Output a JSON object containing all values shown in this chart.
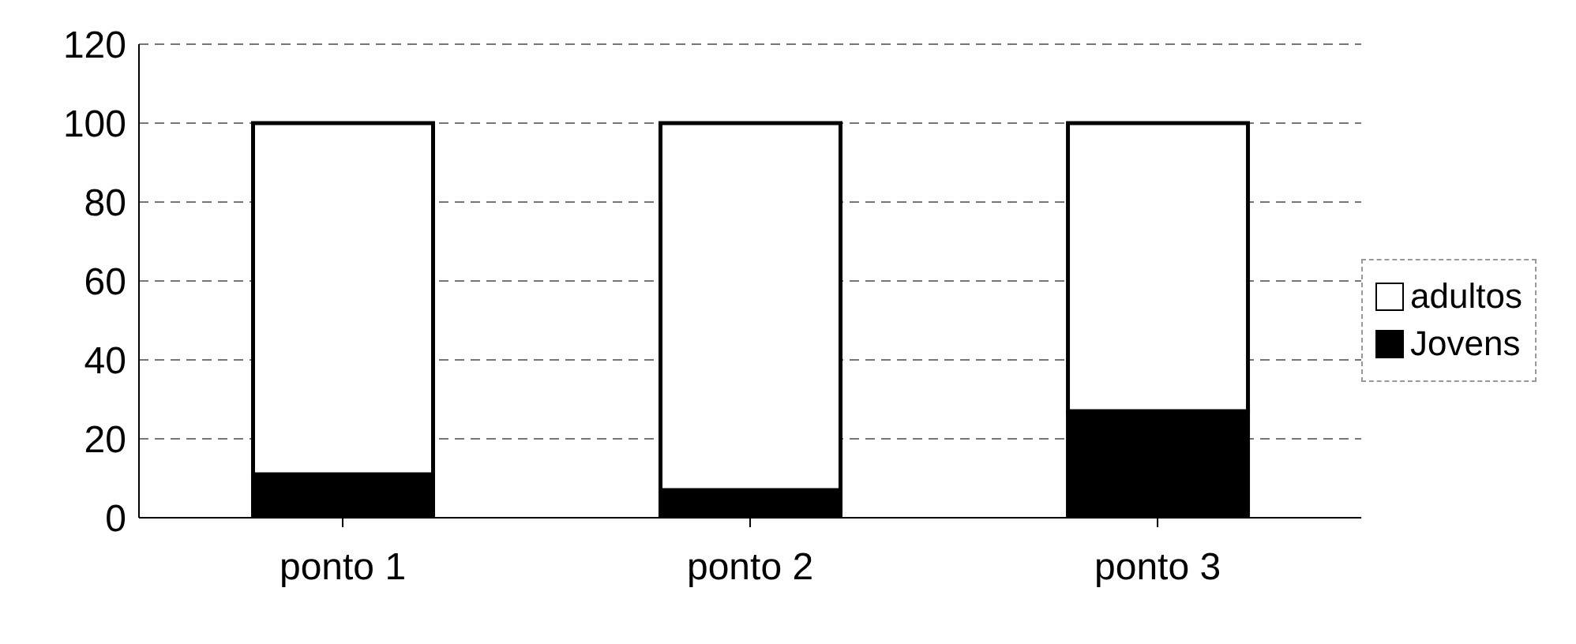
{
  "chart_data": {
    "type": "bar",
    "stacked": true,
    "categories": [
      "ponto 1",
      "ponto 2",
      "ponto 3"
    ],
    "series": [
      {
        "name": "Jovens",
        "color": "#000000",
        "values": [
          11,
          7,
          27
        ]
      },
      {
        "name": "adultos",
        "color": "#ffffff",
        "values": [
          89,
          93,
          73
        ]
      }
    ],
    "ylim": [
      0,
      120
    ],
    "yticks": [
      0,
      20,
      40,
      60,
      80,
      100,
      120
    ],
    "grid": "y",
    "legend": "right"
  }
}
